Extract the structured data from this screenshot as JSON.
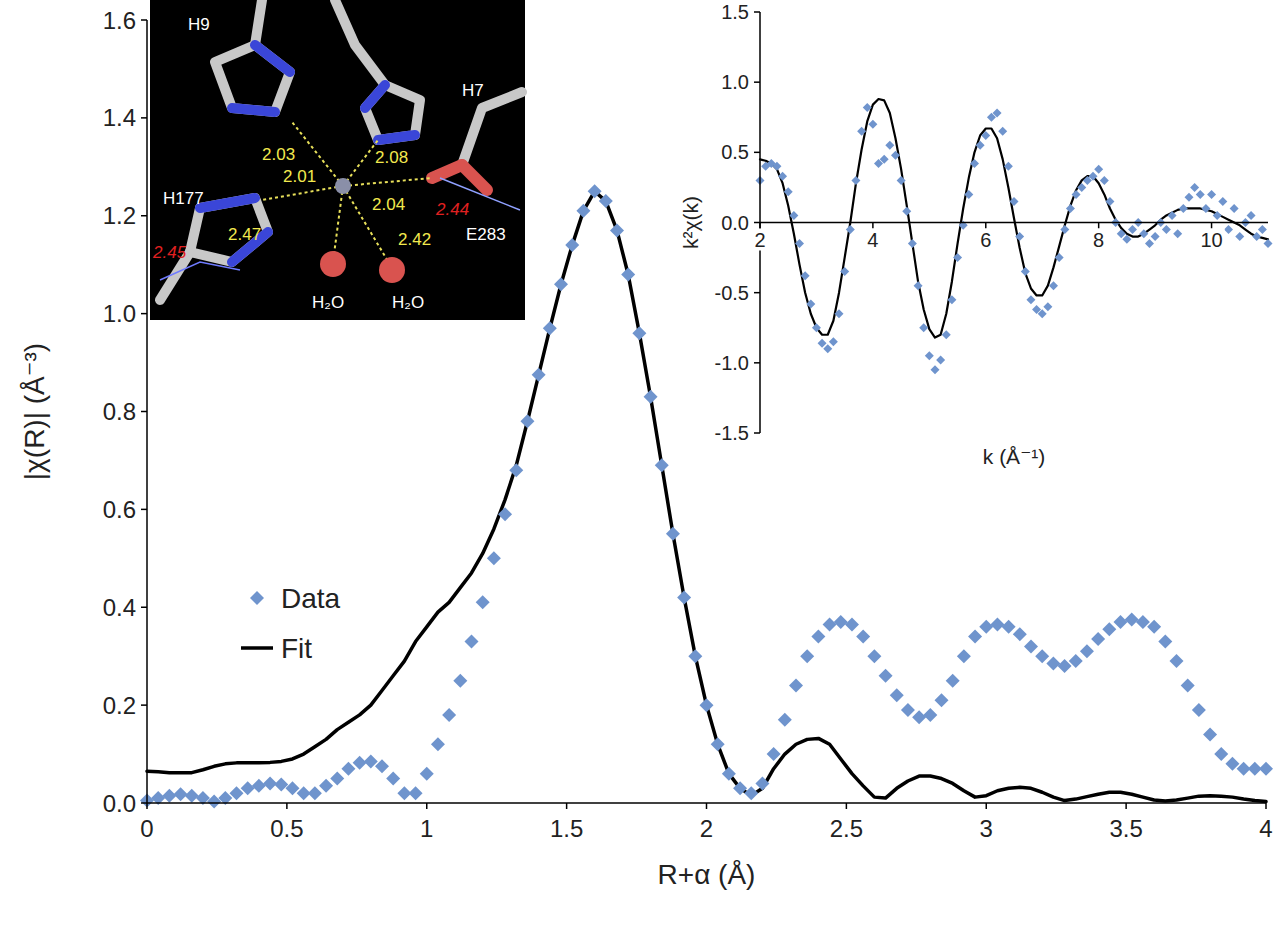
{
  "chart_data": [
    {
      "type": "line",
      "x_label": "R+α (Å)",
      "y_label": "|χ(R)| (Å⁻³)",
      "xlim": [
        0,
        4
      ],
      "xticks": [
        0,
        0.5,
        1,
        1.5,
        2,
        2.5,
        3,
        3.5,
        4
      ],
      "ylim": [
        0,
        1.6
      ],
      "yticks": [
        {
          "value": 0,
          "label": "0.0"
        },
        0.2,
        0.4,
        0.6,
        0.8,
        {
          "value": 1,
          "label": "1.0"
        },
        1.2,
        1.4,
        1.6
      ],
      "grid": false,
      "legend": "lower left",
      "x": [
        0,
        0.04,
        0.08,
        0.12,
        0.16,
        0.2,
        0.24,
        0.28,
        0.32,
        0.36,
        0.4,
        0.44,
        0.48,
        0.52,
        0.56,
        0.6,
        0.64,
        0.68,
        0.72,
        0.76,
        0.8,
        0.84,
        0.88,
        0.92,
        0.96,
        1,
        1.04,
        1.08,
        1.12,
        1.16,
        1.2,
        1.24,
        1.28,
        1.32,
        1.36,
        1.4,
        1.44,
        1.48,
        1.52,
        1.56,
        1.6,
        1.64,
        1.68,
        1.72,
        1.76,
        1.8,
        1.84,
        1.88,
        1.92,
        1.96,
        2,
        2.04,
        2.08,
        2.12,
        2.16,
        2.2,
        2.24,
        2.28,
        2.32,
        2.36,
        2.4,
        2.44,
        2.48,
        2.52,
        2.56,
        2.6,
        2.64,
        2.68,
        2.72,
        2.76,
        2.8,
        2.84,
        2.88,
        2.92,
        2.96,
        3,
        3.04,
        3.08,
        3.12,
        3.16,
        3.2,
        3.24,
        3.28,
        3.32,
        3.36,
        3.4,
        3.44,
        3.48,
        3.52,
        3.56,
        3.6,
        3.64,
        3.68,
        3.72,
        3.76,
        3.8,
        3.84,
        3.88,
        3.92,
        3.96,
        4
      ],
      "series": [
        {
          "name": "Data",
          "type": "scatter",
          "marker": "diamond",
          "color": "#6f94cd",
          "values": [
            0.005,
            0.01,
            0.015,
            0.018,
            0.015,
            0.01,
            0.003,
            0.01,
            0.02,
            0.03,
            0.035,
            0.04,
            0.038,
            0.03,
            0.02,
            0.02,
            0.035,
            0.05,
            0.07,
            0.082,
            0.085,
            0.075,
            0.05,
            0.02,
            0.02,
            0.06,
            0.12,
            0.18,
            0.25,
            0.33,
            0.41,
            0.5,
            0.59,
            0.68,
            0.78,
            0.875,
            0.97,
            1.06,
            1.14,
            1.21,
            1.25,
            1.23,
            1.17,
            1.08,
            0.96,
            0.83,
            0.69,
            0.55,
            0.42,
            0.3,
            0.2,
            0.12,
            0.06,
            0.03,
            0.02,
            0.04,
            0.1,
            0.17,
            0.24,
            0.3,
            0.34,
            0.365,
            0.37,
            0.365,
            0.34,
            0.3,
            0.26,
            0.22,
            0.19,
            0.175,
            0.18,
            0.21,
            0.25,
            0.3,
            0.34,
            0.36,
            0.365,
            0.36,
            0.345,
            0.32,
            0.3,
            0.285,
            0.28,
            0.29,
            0.31,
            0.335,
            0.355,
            0.37,
            0.375,
            0.37,
            0.36,
            0.33,
            0.29,
            0.24,
            0.19,
            0.14,
            0.1,
            0.08,
            0.07,
            0.07,
            0.07
          ]
        },
        {
          "name": "Fit",
          "type": "line",
          "line_style": "solid",
          "color": "#000000",
          "values": [
            0.065,
            0.064,
            0.062,
            0.062,
            0.062,
            0.068,
            0.075,
            0.08,
            0.082,
            0.082,
            0.082,
            0.083,
            0.085,
            0.09,
            0.1,
            0.115,
            0.13,
            0.15,
            0.165,
            0.18,
            0.2,
            0.23,
            0.26,
            0.29,
            0.33,
            0.36,
            0.39,
            0.41,
            0.44,
            0.47,
            0.51,
            0.56,
            0.62,
            0.69,
            0.78,
            0.875,
            0.97,
            1.06,
            1.14,
            1.21,
            1.25,
            1.23,
            1.17,
            1.08,
            0.96,
            0.83,
            0.69,
            0.55,
            0.42,
            0.3,
            0.2,
            0.12,
            0.06,
            0.03,
            0.015,
            0.03,
            0.07,
            0.1,
            0.12,
            0.13,
            0.132,
            0.12,
            0.09,
            0.06,
            0.035,
            0.012,
            0.01,
            0.03,
            0.045,
            0.055,
            0.055,
            0.05,
            0.04,
            0.025,
            0.012,
            0.015,
            0.025,
            0.03,
            0.032,
            0.03,
            0.022,
            0.012,
            0.005,
            0.008,
            0.013,
            0.018,
            0.022,
            0.022,
            0.018,
            0.012,
            0.006,
            0.004,
            0.006,
            0.01,
            0.014,
            0.015,
            0.014,
            0.012,
            0.008,
            0.005,
            0.003
          ]
        }
      ]
    },
    {
      "type": "line",
      "x_label": "k (Å⁻¹)",
      "y_label": "k²χ(k)",
      "xlim": [
        2,
        11
      ],
      "xticks": [
        2,
        4,
        6,
        8,
        10
      ],
      "ylim": [
        -1.5,
        1.5
      ],
      "yticks": [
        -1.5,
        {
          "value": -1,
          "label": "-1.0"
        },
        -0.5,
        {
          "value": 0,
          "label": "0.0"
        },
        0.5,
        {
          "value": 1,
          "label": "1.0"
        },
        1.5
      ],
      "grid": false,
      "x": [
        2,
        2.1,
        2.2,
        2.3,
        2.4,
        2.5,
        2.6,
        2.7,
        2.8,
        2.9,
        3,
        3.1,
        3.2,
        3.3,
        3.4,
        3.5,
        3.6,
        3.7,
        3.8,
        3.9,
        4,
        4.1,
        4.2,
        4.3,
        4.4,
        4.5,
        4.6,
        4.7,
        4.8,
        4.9,
        5,
        5.1,
        5.2,
        5.3,
        5.4,
        5.5,
        5.6,
        5.7,
        5.8,
        5.9,
        6,
        6.1,
        6.2,
        6.3,
        6.4,
        6.5,
        6.6,
        6.7,
        6.8,
        6.9,
        7,
        7.1,
        7.2,
        7.3,
        7.4,
        7.5,
        7.6,
        7.7,
        7.8,
        7.9,
        8,
        8.1,
        8.2,
        8.3,
        8.4,
        8.5,
        8.6,
        8.7,
        8.8,
        8.9,
        9,
        9.1,
        9.2,
        9.3,
        9.4,
        9.5,
        9.6,
        9.7,
        9.8,
        9.9,
        10,
        10.1,
        10.2,
        10.3,
        10.4,
        10.5,
        10.6,
        10.7,
        10.8,
        10.9,
        11
      ],
      "series": [
        {
          "type": "scatter",
          "marker": "diamond",
          "color": "#6f94cd",
          "values": [
            0.3,
            0.4,
            0.42,
            0.4,
            0.33,
            0.22,
            0.05,
            -0.15,
            -0.38,
            -0.58,
            -0.75,
            -0.86,
            -0.9,
            -0.85,
            -0.65,
            -0.35,
            -0.05,
            0.3,
            0.65,
            0.82,
            0.7,
            0.42,
            0.45,
            0.55,
            0.48,
            0.3,
            0.08,
            -0.15,
            -0.45,
            -0.75,
            -0.95,
            -1.05,
            -0.98,
            -0.8,
            -0.55,
            -0.25,
            -0.02,
            0.2,
            0.42,
            0.55,
            0.62,
            0.75,
            0.78,
            0.65,
            0.4,
            0.15,
            -0.1,
            -0.35,
            -0.55,
            -0.62,
            -0.65,
            -0.6,
            -0.45,
            -0.25,
            -0.05,
            0.1,
            0.2,
            0.25,
            0.3,
            0.33,
            0.38,
            0.3,
            0.15,
            0,
            -0.08,
            -0.12,
            -0.05,
            0,
            -0.08,
            -0.15,
            -0.1,
            0,
            -0.05,
            0.05,
            -0.08,
            0.1,
            0.18,
            0.25,
            0.2,
            0.1,
            0.2,
            0.05,
            0.15,
            -0.05,
            0.1,
            -0.1,
            0,
            0.05,
            -0.1,
            -0.05,
            -0.15
          ]
        },
        {
          "type": "line",
          "line_style": "solid",
          "color": "#000000",
          "values": [
            0.45,
            0.44,
            0.42,
            0.38,
            0.28,
            0.12,
            -0.08,
            -0.3,
            -0.5,
            -0.65,
            -0.75,
            -0.8,
            -0.8,
            -0.7,
            -0.5,
            -0.25,
            0,
            0.28,
            0.52,
            0.72,
            0.84,
            0.88,
            0.87,
            0.78,
            0.6,
            0.38,
            0.12,
            -0.15,
            -0.42,
            -0.62,
            -0.76,
            -0.82,
            -0.8,
            -0.65,
            -0.42,
            -0.15,
            0.1,
            0.32,
            0.5,
            0.62,
            0.67,
            0.67,
            0.6,
            0.45,
            0.25,
            0.03,
            -0.18,
            -0.36,
            -0.47,
            -0.52,
            -0.52,
            -0.45,
            -0.32,
            -0.17,
            -0.02,
            0.12,
            0.23,
            0.3,
            0.33,
            0.33,
            0.28,
            0.2,
            0.1,
            0.02,
            -0.04,
            -0.08,
            -0.1,
            -0.1,
            -0.08,
            -0.05,
            -0.02,
            0.02,
            0.05,
            0.07,
            0.09,
            0.1,
            0.1,
            0.1,
            0.1,
            0.09,
            0.08,
            0.06,
            0.04,
            0.02,
            0,
            -0.02,
            -0.05,
            -0.08,
            -0.1,
            -0.11,
            -0.12
          ]
        }
      ]
    }
  ],
  "structure_inset": {
    "residues": [
      "H9",
      "H7",
      "H177",
      "E283"
    ],
    "waters": [
      "H₂O",
      "H₂O"
    ],
    "distances": [
      2.03,
      2.08,
      2.01,
      2.04,
      2.47,
      2.42
    ],
    "alt_distances": [
      2.44,
      2.45
    ]
  }
}
